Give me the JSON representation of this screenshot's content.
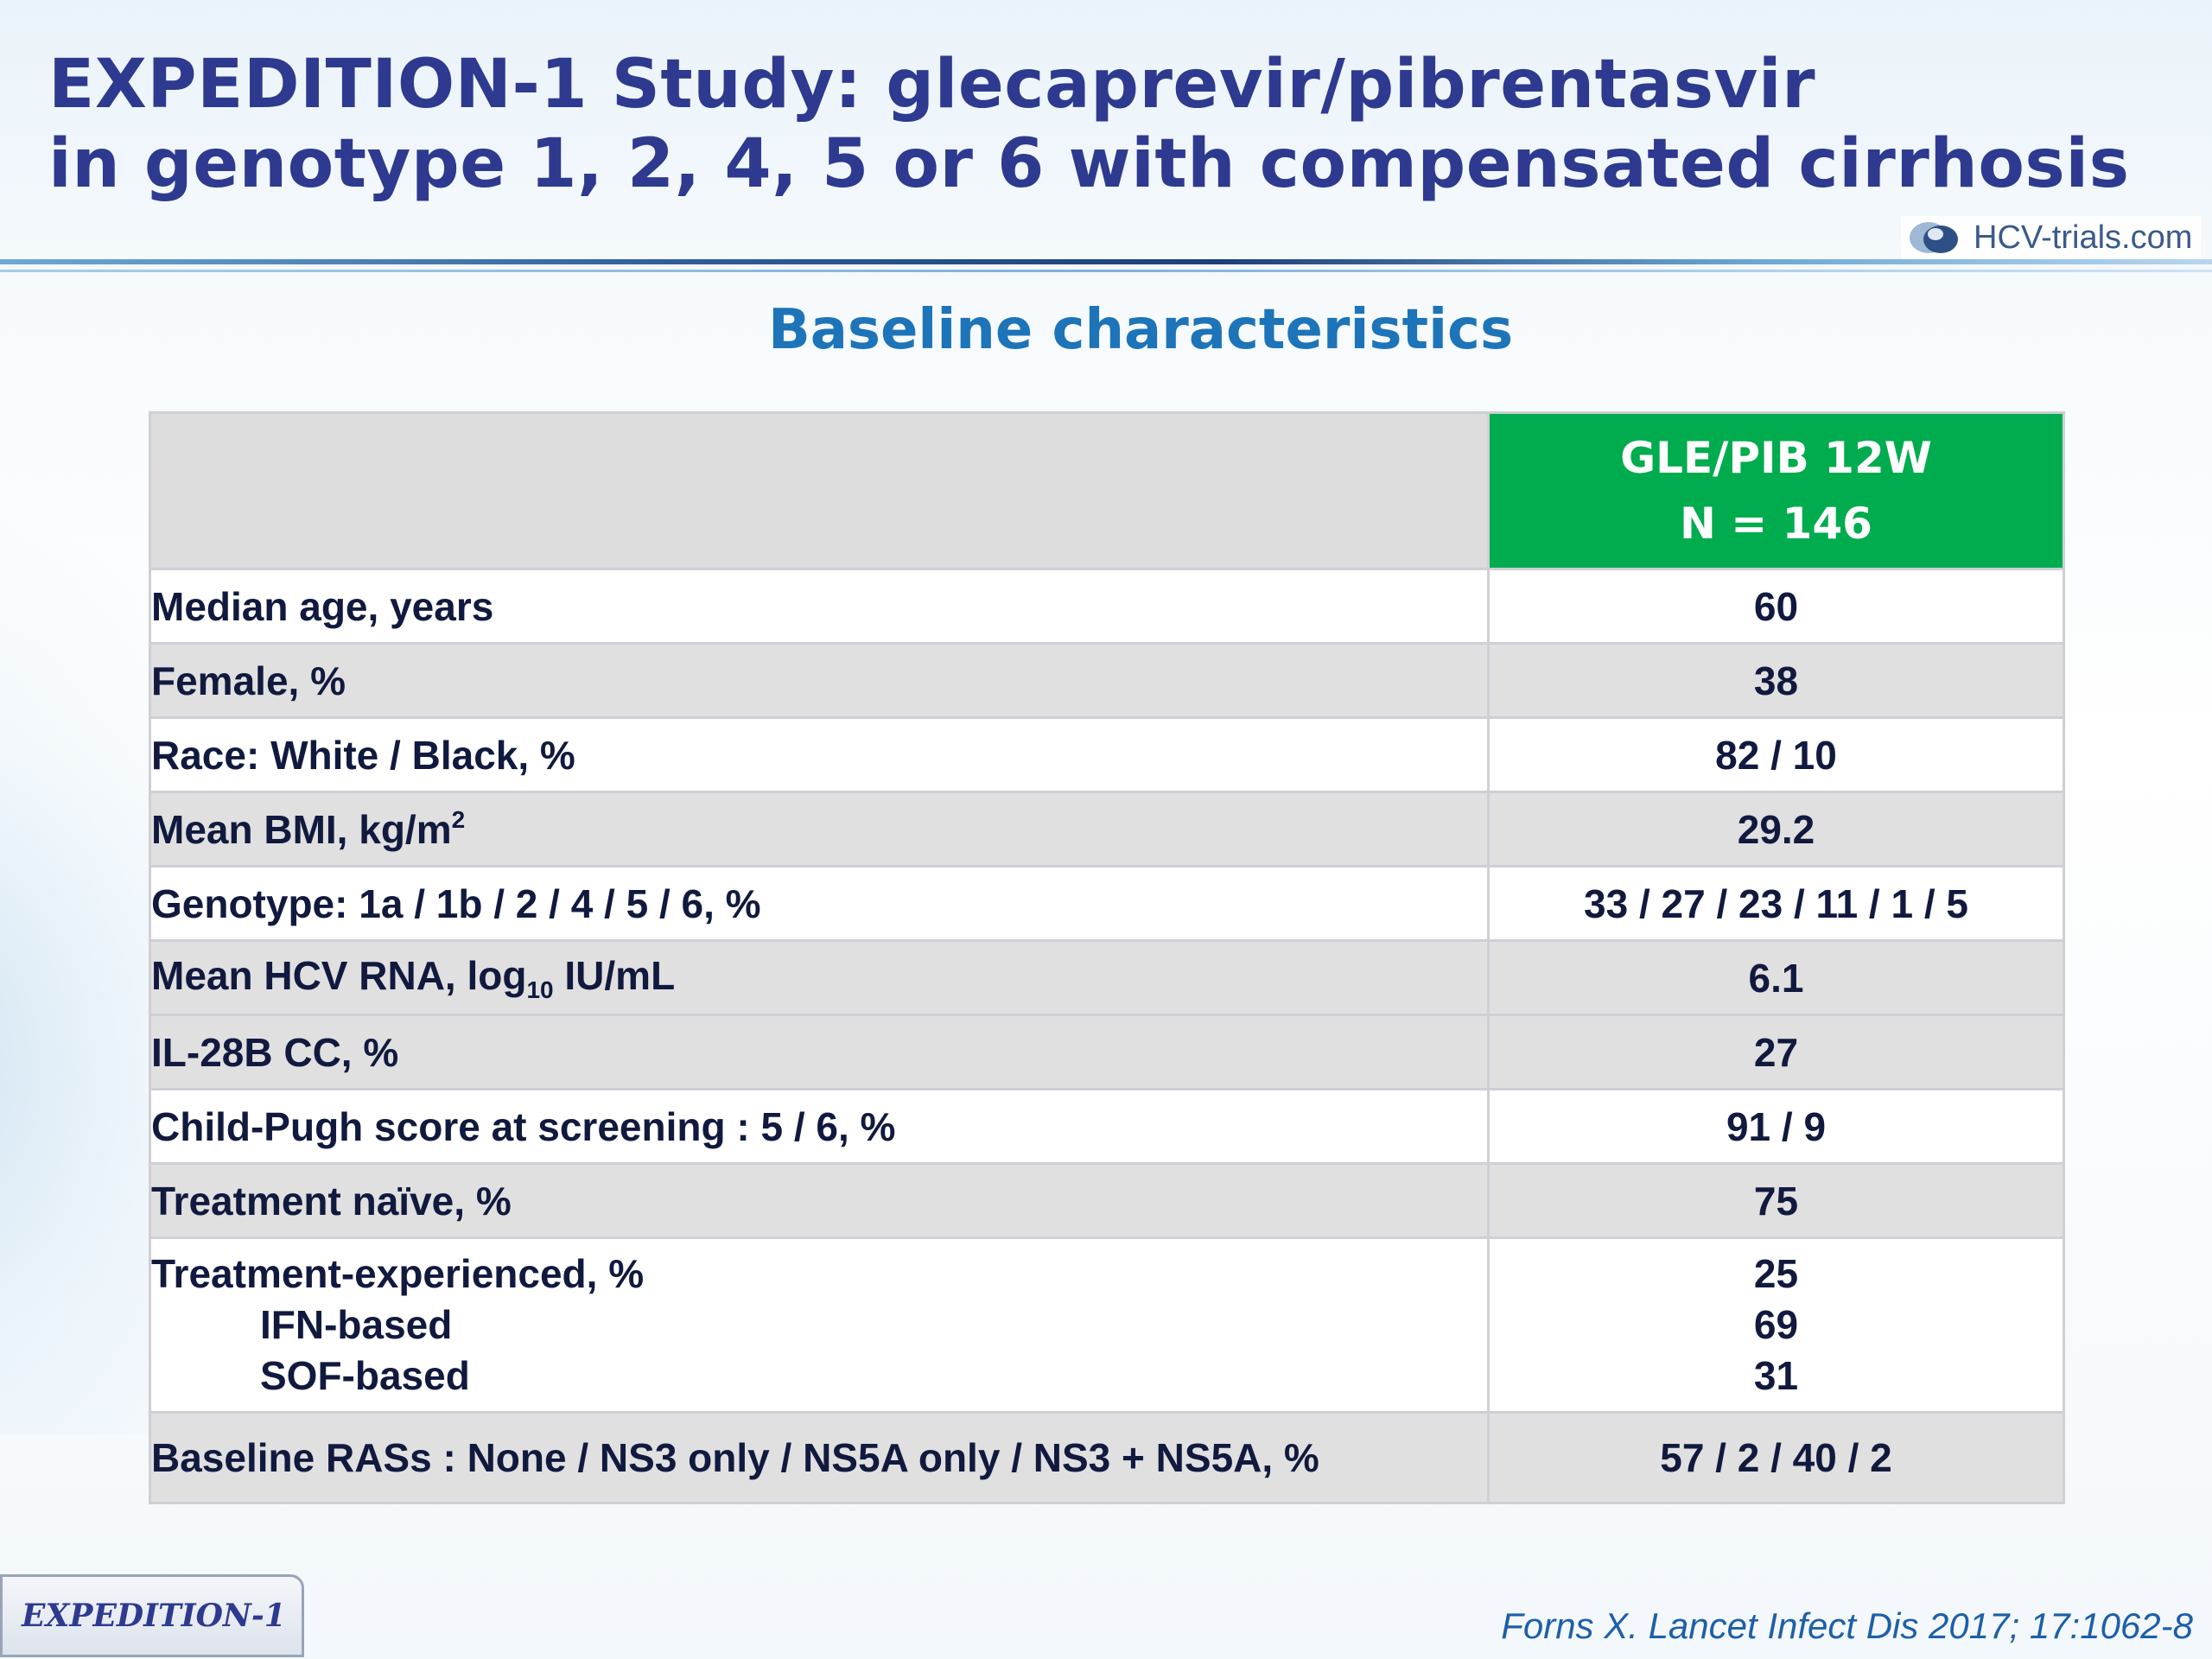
{
  "title": {
    "line1": "EXPEDITION-1 Study: glecaprevir/pibrentasvir",
    "line2": "in genotype 1, 2, 4, 5 or 6 with compensated cirrhosis"
  },
  "logo": {
    "text": "HCV-trials.com"
  },
  "subtitle": "Baseline characteristics",
  "table": {
    "arm_line1": "GLE/PIB 12W",
    "arm_line2": "N = 146",
    "rows": [
      {
        "label": "Median age, years",
        "value": "60"
      },
      {
        "label": "Female, %",
        "value": "38"
      },
      {
        "label": "Race: White / Black, %",
        "value": "82 / 10"
      },
      {
        "label_main": "Mean BMI, kg/m",
        "label_sup": "2",
        "value": "29.2"
      },
      {
        "label": "Genotype: 1a / 1b / 2 / 4 / 5 / 6, %",
        "value": "33 / 27 / 23 / 11 / 1 / 5"
      },
      {
        "label_main": "Mean HCV RNA, log",
        "label_sub": "10",
        "label_tail": " IU/mL",
        "value": "6.1"
      },
      {
        "label": "IL-28B CC, %",
        "value": "27"
      },
      {
        "label": "Child-Pugh score at screening : 5 / 6, %",
        "value": "91 / 9"
      },
      {
        "label": "Treatment naïve, %",
        "value": "75"
      },
      {
        "label": "Treatment-experienced, %",
        "value": "25",
        "sub1_label": "IFN-based",
        "sub1_value": "69",
        "sub2_label": "SOF-based",
        "sub2_value": "31"
      },
      {
        "label": "Baseline RASs : None / NS3 only / NS5A only / NS3 + NS5A, %",
        "value": "57 / 2 / 40 / 2"
      }
    ]
  },
  "footer": {
    "tab": "EXPEDITION-1",
    "citation": "Forns X. Lancet Infect Dis 2017; 17:1062-8"
  },
  "colors": {
    "title": "#2e3a8f",
    "subtitle": "#1d74b8",
    "header_green": "#00ac4e",
    "row_alt": "#e0e0e0"
  }
}
